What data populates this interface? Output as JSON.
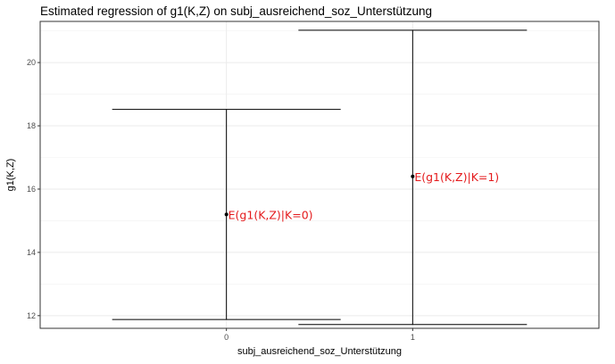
{
  "chart_data": {
    "type": "errorbar",
    "title": "Estimated regression of g1(K,Z) on subj_ausreichend_soz_Unterstützung",
    "xlabel": "subj_ausreichend_soz_Unterstützung",
    "ylabel": "g1(K,Z)",
    "categories": [
      "0",
      "1"
    ],
    "values": [
      15.2,
      16.4
    ],
    "lower": [
      11.88,
      11.72
    ],
    "upper": [
      18.52,
      21.02
    ],
    "annotations": [
      "E(g1(K,Z)|K=0)",
      "E(g1(K,Z)|K=1)"
    ],
    "annotation_color": "#e41a1c",
    "ylim": [
      11.6,
      21.3
    ],
    "y_ticks": [
      "12",
      "14",
      "16",
      "18",
      "20"
    ],
    "grid": true,
    "panel_background": "#ffffff",
    "grid_color": "#ebebeb"
  }
}
